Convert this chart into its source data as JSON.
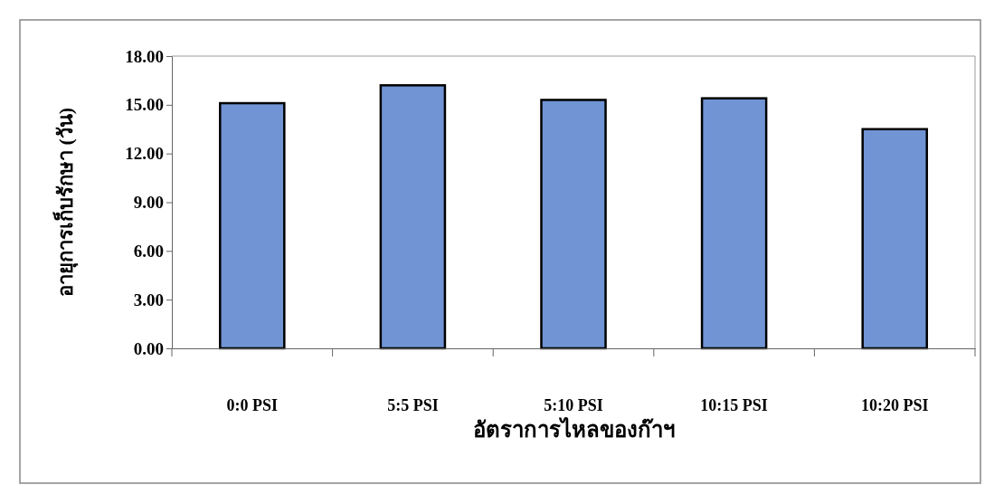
{
  "chart_data": {
    "type": "bar",
    "categories": [
      "0:0 PSI",
      "5:5 PSI",
      "5:10 PSI",
      "10:15 PSI",
      "10:20 PSI"
    ],
    "values": [
      15.1,
      16.2,
      15.3,
      15.4,
      13.5
    ],
    "color": "#7094d4",
    "xlabel": "อัตราการไหลของก๊าฯ",
    "ylabel": "อายุการเก็บรักษา (วัน)",
    "ylim": [
      0,
      18
    ],
    "yticks": [
      {
        "value": 0,
        "label": "0.00"
      },
      {
        "value": 3,
        "label": "3.00"
      },
      {
        "value": 6,
        "label": "6.00"
      },
      {
        "value": 9,
        "label": "9.00"
      },
      {
        "value": 12,
        "label": "12.00"
      },
      {
        "value": 15,
        "label": "15.00"
      },
      {
        "value": 18,
        "label": "18.00"
      }
    ],
    "grid": false
  }
}
